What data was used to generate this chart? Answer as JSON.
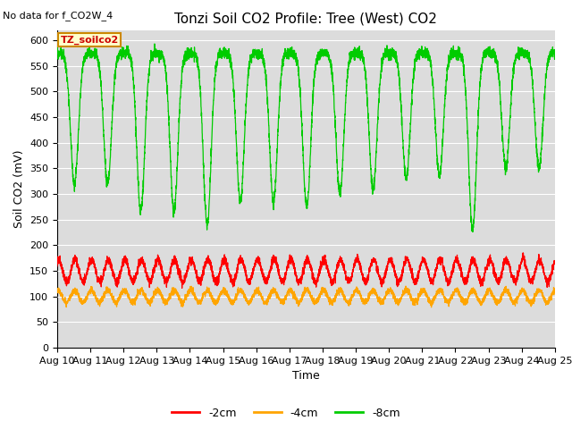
{
  "title": "Tonzi Soil CO2 Profile: Tree (West) CO2",
  "top_left_text": "No data for f_CO2W_4",
  "ylabel": "Soil CO2 (mV)",
  "xlabel": "Time",
  "box_label": "TZ_soilco2",
  "ylim": [
    0,
    620
  ],
  "yticks": [
    0,
    50,
    100,
    150,
    200,
    250,
    300,
    350,
    400,
    450,
    500,
    550,
    600
  ],
  "xlim": [
    10,
    25
  ],
  "xtick_labels": [
    "Aug 10",
    "Aug 11",
    "Aug 12",
    "Aug 13",
    "Aug 14",
    "Aug 15",
    "Aug 16",
    "Aug 17",
    "Aug 18",
    "Aug 19",
    "Aug 20",
    "Aug 21",
    "Aug 22",
    "Aug 23",
    "Aug 24",
    "Aug 25"
  ],
  "color_2cm": "#ff0000",
  "color_4cm": "#ffa500",
  "color_8cm": "#00cc00",
  "legend_labels": [
    "-2cm",
    "-4cm",
    "-8cm"
  ],
  "background_color": "#dcdcdc",
  "title_fontsize": 11,
  "axis_label_fontsize": 9,
  "tick_fontsize": 8,
  "n_days": 15,
  "points_per_day": 288,
  "green_peak": 575,
  "green_trough_default": 310,
  "red_base": 150,
  "red_amp": 22,
  "orange_base": 100,
  "orange_amp": 12,
  "trough_depths": [
    320,
    320,
    265,
    265,
    240,
    285,
    285,
    275,
    300,
    310,
    330,
    335,
    230,
    350,
    350
  ]
}
